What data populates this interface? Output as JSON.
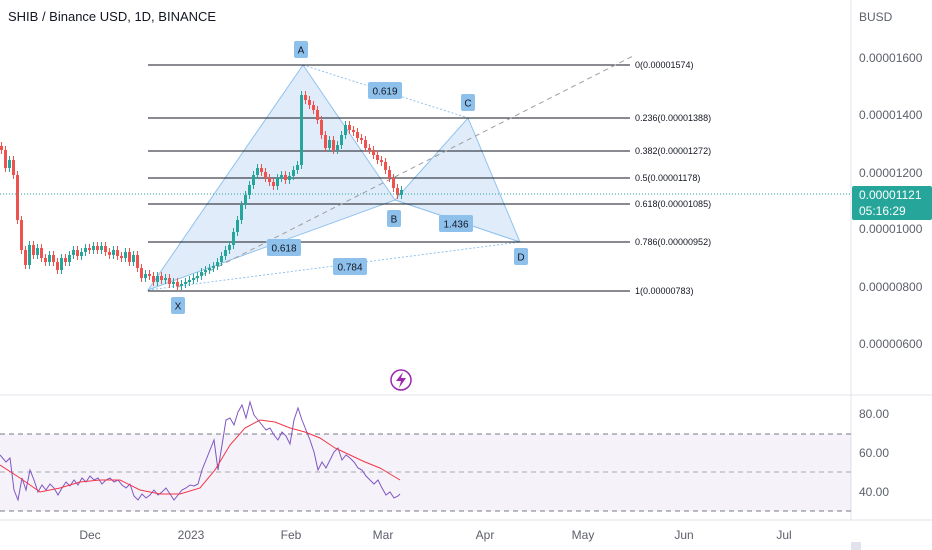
{
  "header": {
    "title": "SHIB / Binance USD, 1D, BINANCE"
  },
  "price_axis": {
    "currency": "BUSD",
    "ticks": [
      "0.00001600",
      "0.00001400",
      "0.00001200",
      "0.00001000",
      "0.00000800",
      "0.00000600"
    ],
    "current_price": "0.00001121",
    "countdown": "05:16:29"
  },
  "rsi_axis": {
    "ticks": [
      "80.00",
      "60.00",
      "40.00"
    ]
  },
  "time_axis": {
    "labels": [
      "Dec",
      "2023",
      "Feb",
      "Mar",
      "Apr",
      "May",
      "Jun",
      "Jul"
    ]
  },
  "fib_levels": [
    "0(0.00001574)",
    "0.236(0.00001388)",
    "0.382(0.00001272)",
    "0.5(0.00001178)",
    "0.618(0.00001085)",
    "0.786(0.00000952)",
    "1(0.00000783)"
  ],
  "xabcd": {
    "points": [
      "X",
      "A",
      "B",
      "C",
      "D"
    ],
    "ratios": [
      "0.619",
      "1.436",
      "0.618",
      "0.784"
    ]
  },
  "colors": {
    "candle_up": "#26a69a",
    "candle_down": "#ef5350",
    "pattern_fill": "#d5e6f7",
    "pattern_line": "#90c2ee",
    "label_bg": "#8ec0ec",
    "rsi_line": "#7e57c2",
    "rsi_ma": "#f23645",
    "price_tag": "#26a69a"
  },
  "icons": {
    "replay": "lightning-icon"
  }
}
